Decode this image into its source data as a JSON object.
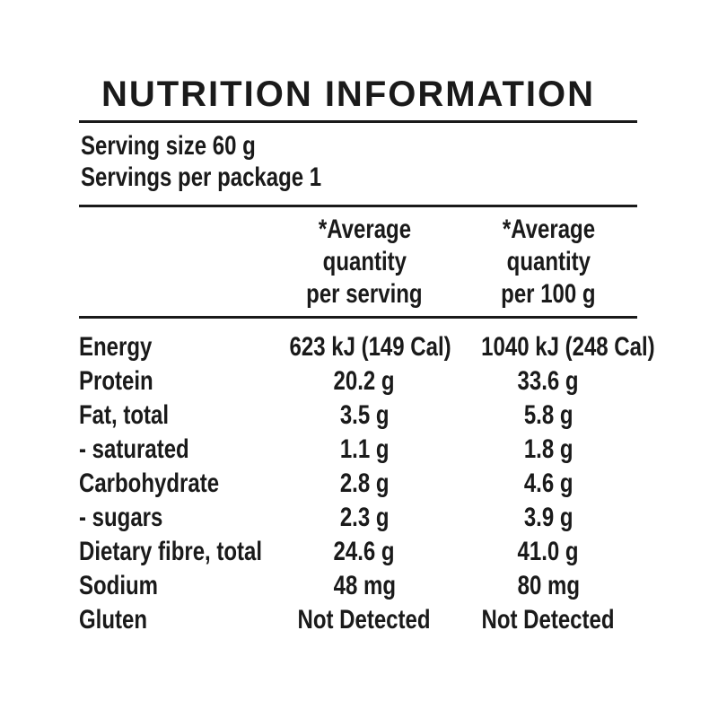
{
  "title": "NUTRITION INFORMATION",
  "serving_info": {
    "serving_size": "Serving size 60 g",
    "servings_per_package": "Servings per package 1"
  },
  "column_headers": {
    "per_serving_lines": [
      "*Average",
      "quantity",
      "per serving"
    ],
    "per_100g_lines": [
      "*Average",
      "quantity",
      "per 100 g"
    ]
  },
  "rows": [
    {
      "label": "Energy",
      "per_serving": "623 kJ (149 Cal)",
      "per_100g": "1040 kJ (248 Cal)"
    },
    {
      "label": "Protein",
      "per_serving": "20.2 g",
      "per_100g": "33.6 g"
    },
    {
      "label": "Fat, total",
      "per_serving": "3.5 g",
      "per_100g": "5.8 g"
    },
    {
      "label": "- saturated",
      "per_serving": "1.1 g",
      "per_100g": "1.8 g"
    },
    {
      "label": "Carbohydrate",
      "per_serving": "2.8 g",
      "per_100g": "4.6 g"
    },
    {
      "label": "- sugars",
      "per_serving": "2.3 g",
      "per_100g": "3.9 g"
    },
    {
      "label": "Dietary fibre, total",
      "per_serving": "24.6 g",
      "per_100g": "41.0 g"
    },
    {
      "label": "Sodium",
      "per_serving": "48 mg",
      "per_100g": "80 mg"
    },
    {
      "label": "Gluten",
      "per_serving": "Not Detected",
      "per_100g": "Not Detected"
    }
  ],
  "colors": {
    "text": "#1a1a1a",
    "background": "#ffffff",
    "rule": "#1a1a1a"
  }
}
